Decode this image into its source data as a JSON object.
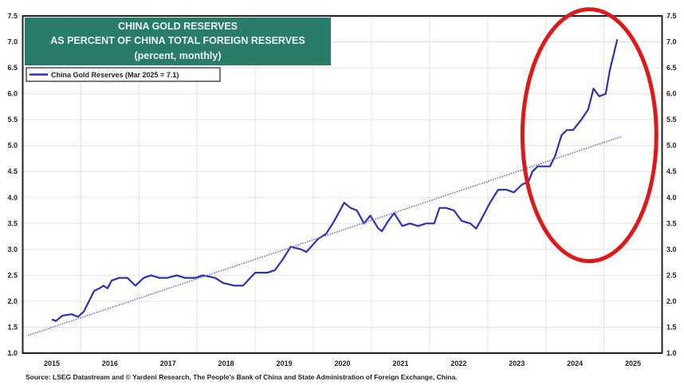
{
  "chart_data": {
    "type": "line",
    "title": [
      "CHINA GOLD RESERVES",
      "AS PERCENT OF CHINA TOTAL FOREIGN RESERVES",
      "(percent, monthly)"
    ],
    "xlabel": "",
    "ylabel": "",
    "ylim": [
      1.0,
      7.5
    ],
    "xlim": [
      2015.0,
      2026.0
    ],
    "yticks": [
      "1.0",
      "1.5",
      "2.0",
      "2.5",
      "3.0",
      "3.5",
      "4.0",
      "4.5",
      "5.0",
      "5.5",
      "6.0",
      "6.5",
      "7.0",
      "7.5"
    ],
    "xticks": [
      "2015",
      "2016",
      "2017",
      "2018",
      "2019",
      "2020",
      "2021",
      "2022",
      "2023",
      "2024",
      "2025"
    ],
    "grid": true,
    "legend_position": "top-left",
    "series": [
      {
        "name": "China Gold Reserves (Mar 2025 = 7.1)",
        "color": "#2b2fc0",
        "style": "solid",
        "x": [
          2015.5,
          2015.57,
          2015.68,
          2015.84,
          2015.95,
          2016.05,
          2016.14,
          2016.23,
          2016.32,
          2016.39,
          2016.46,
          2016.53,
          2016.66,
          2016.8,
          2016.94,
          2017.08,
          2017.21,
          2017.35,
          2017.49,
          2017.65,
          2017.79,
          2017.97,
          2018.1,
          2018.31,
          2018.45,
          2018.65,
          2018.79,
          2019.0,
          2019.21,
          2019.34,
          2019.47,
          2019.61,
          2019.79,
          2019.88,
          2020.08,
          2020.22,
          2020.36,
          2020.53,
          2020.64,
          2020.75,
          2020.87,
          2020.98,
          2021.12,
          2021.18,
          2021.29,
          2021.39,
          2021.53,
          2021.66,
          2021.8,
          2021.94,
          2022.08,
          2022.17,
          2022.28,
          2022.42,
          2022.55,
          2022.7,
          2022.8,
          2022.9,
          2023.04,
          2023.18,
          2023.32,
          2023.45,
          2023.59,
          2023.7,
          2023.77,
          2023.86,
          2024.07,
          2024.16,
          2024.27,
          2024.36,
          2024.47,
          2024.61,
          2024.73,
          2024.82,
          2024.92,
          2025.03,
          2025.1,
          2025.23
        ],
        "y": [
          1.65,
          1.62,
          1.72,
          1.75,
          1.7,
          1.8,
          2.0,
          2.2,
          2.25,
          2.3,
          2.25,
          2.4,
          2.45,
          2.45,
          2.3,
          2.45,
          2.5,
          2.45,
          2.45,
          2.5,
          2.45,
          2.45,
          2.5,
          2.45,
          2.35,
          2.3,
          2.3,
          2.55,
          2.55,
          2.6,
          2.8,
          3.05,
          3.0,
          2.95,
          3.2,
          3.3,
          3.55,
          3.9,
          3.8,
          3.75,
          3.5,
          3.65,
          3.4,
          3.35,
          3.55,
          3.7,
          3.45,
          3.5,
          3.45,
          3.5,
          3.5,
          3.8,
          3.8,
          3.75,
          3.55,
          3.5,
          3.4,
          3.6,
          3.9,
          4.15,
          4.15,
          4.1,
          4.25,
          4.3,
          4.5,
          4.6,
          4.6,
          4.8,
          5.2,
          5.3,
          5.3,
          5.5,
          5.7,
          6.1,
          5.95,
          6.0,
          6.45,
          7.05
        ]
      },
      {
        "color": "#6a6ec8",
        "style": "dotted",
        "x": [
          2015.09,
          2025.29
        ],
        "y": [
          1.34,
          5.17
        ]
      }
    ],
    "annotations": [
      {
        "type": "ellipse",
        "color": "#e01818",
        "x_center": 2024.75,
        "y_center": 5.2
      }
    ],
    "colors": {
      "title_box": "#2a7c6a",
      "highlight": "#e01818"
    }
  },
  "source": "Source: LSEG Datastream and © Yardeni Research, The People's Bank of China and State Administration of Foreign Exchange, China."
}
